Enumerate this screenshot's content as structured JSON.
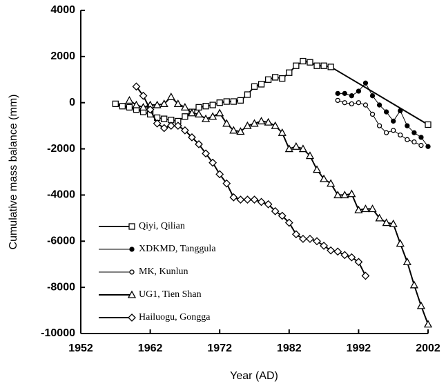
{
  "chart_data": {
    "type": "line",
    "xlabel": "Year (AD)",
    "ylabel": "Cumulative mass balance (mm)",
    "xlim": [
      1952,
      2002
    ],
    "xticks": [
      1952,
      1962,
      1972,
      1982,
      1992,
      2002
    ],
    "ylim": [
      -10000,
      4000
    ],
    "yticks": [
      -10000,
      -8000,
      -6000,
      -4000,
      -2000,
      0,
      2000,
      4000
    ],
    "legend": "lower-left",
    "series": [
      {
        "name": "Qiyi, Qilian",
        "color": "#000000",
        "marker": "square",
        "x": [
          1957,
          1958,
          1959,
          1960,
          1961,
          1962,
          1963,
          1964,
          1965,
          1966,
          1967,
          1968,
          1969,
          1970,
          1971,
          1972,
          1973,
          1974,
          1975,
          1976,
          1977,
          1978,
          1979,
          1980,
          1981,
          1982,
          1983,
          1984,
          1985,
          1986,
          1987,
          1988,
          2002
        ],
        "values": [
          -50,
          -150,
          -200,
          -300,
          -400,
          -500,
          -650,
          -700,
          -750,
          -800,
          -600,
          -400,
          -200,
          -150,
          -100,
          0,
          50,
          50,
          100,
          350,
          700,
          800,
          1000,
          1100,
          1050,
          1300,
          1600,
          1800,
          1750,
          1600,
          1600,
          1550,
          -950
        ]
      },
      {
        "name": "XDKMD, Tanggula",
        "color": "#000000",
        "marker": "dot",
        "x": [
          1989,
          1990,
          1991,
          1992,
          1993,
          1994,
          1995,
          1996,
          1997,
          1998,
          1999,
          2000,
          2001,
          2002
        ],
        "values": [
          400,
          400,
          300,
          500,
          850,
          300,
          -100,
          -400,
          -800,
          -350,
          -1000,
          -1300,
          -1500,
          -1900
        ]
      },
      {
        "name": "MK, Kunlun",
        "color": "#000000",
        "marker": "circle",
        "x": [
          1989,
          1990,
          1991,
          1992,
          1993,
          1994,
          1995,
          1996,
          1997,
          1998,
          1999,
          2000,
          2001
        ],
        "values": [
          100,
          0,
          -50,
          0,
          -100,
          -500,
          -1000,
          -1300,
          -1200,
          -1400,
          -1600,
          -1700,
          -1850
        ]
      },
      {
        "name": "UG1, Tien Shan",
        "color": "#000000",
        "marker": "triangle",
        "x": [
          1959,
          1960,
          1961,
          1962,
          1963,
          1964,
          1965,
          1966,
          1967,
          1968,
          1969,
          1970,
          1971,
          1972,
          1973,
          1974,
          1975,
          1976,
          1977,
          1978,
          1979,
          1980,
          1981,
          1982,
          1983,
          1984,
          1985,
          1986,
          1987,
          1988,
          1989,
          1990,
          1991,
          1992,
          1993,
          1994,
          1995,
          1996,
          1997,
          1998,
          1999,
          2000,
          2001,
          2002
        ],
        "values": [
          100,
          -100,
          -200,
          -100,
          -100,
          -50,
          250,
          -50,
          -200,
          -450,
          -500,
          -700,
          -600,
          -450,
          -900,
          -1200,
          -1250,
          -1000,
          -900,
          -800,
          -850,
          -1000,
          -1300,
          -2000,
          -1900,
          -2000,
          -2300,
          -2900,
          -3300,
          -3500,
          -4000,
          -4000,
          -3950,
          -4650,
          -4600,
          -4600,
          -5000,
          -5200,
          -5250,
          -6100,
          -6900,
          -7900,
          -8800,
          -9600
        ]
      },
      {
        "name": "Hailuogu, Gongga",
        "color": "#000000",
        "marker": "diamond",
        "x": [
          1960,
          1961,
          1962,
          1963,
          1964,
          1965,
          1966,
          1967,
          1968,
          1969,
          1970,
          1971,
          1972,
          1973,
          1974,
          1975,
          1976,
          1977,
          1978,
          1979,
          1980,
          1981,
          1982,
          1983,
          1984,
          1985,
          1986,
          1987,
          1988,
          1989,
          1990,
          1991,
          1992,
          1993
        ],
        "values": [
          700,
          300,
          -300,
          -900,
          -1100,
          -1000,
          -1000,
          -1200,
          -1500,
          -1800,
          -2200,
          -2600,
          -3100,
          -3500,
          -4100,
          -4200,
          -4200,
          -4200,
          -4300,
          -4400,
          -4700,
          -4900,
          -5200,
          -5700,
          -5900,
          -5900,
          -6000,
          -6200,
          -6400,
          -6450,
          -6600,
          -6700,
          -6900,
          -7500
        ]
      }
    ]
  }
}
